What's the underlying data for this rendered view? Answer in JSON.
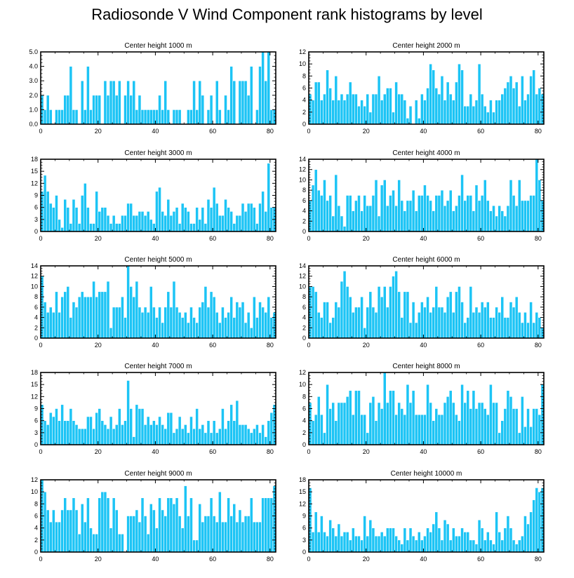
{
  "figure_title": "Radiosonde V Wind Component rank histograms by level",
  "colors": {
    "bar_fill": "#1cc4f5",
    "bar_stroke": "#ffffff",
    "axis": "#000000"
  },
  "chart_data": [
    {
      "type": "bar",
      "title": "Center height 1000 m",
      "xlabel": "",
      "ylabel": "",
      "xlim": [
        0,
        82
      ],
      "ylim": [
        0,
        5
      ],
      "yticks": [
        0,
        1,
        2,
        3,
        4,
        5
      ],
      "ytick_labels": [
        "0.0",
        "1.0",
        "2.0",
        "3.0",
        "4.0",
        "5.0"
      ],
      "xticks": [
        0,
        20,
        40,
        60,
        80
      ],
      "x_start": 0,
      "values": [
        2,
        1,
        2,
        1,
        0,
        1,
        1,
        1,
        2,
        2,
        4,
        1,
        1,
        0,
        3,
        1,
        4,
        1,
        2,
        2,
        2,
        0,
        3,
        2,
        3,
        3,
        2,
        3,
        0,
        2,
        3,
        2,
        3,
        1,
        2,
        1,
        1,
        1,
        1,
        1,
        1,
        2,
        1,
        3,
        1,
        0,
        1,
        1,
        1,
        0,
        0,
        1,
        1,
        3,
        1,
        3,
        2,
        0,
        1,
        2,
        0,
        3,
        1,
        0,
        2,
        1,
        4,
        3,
        0,
        3,
        3,
        3,
        2,
        4,
        0,
        1,
        4,
        5,
        3,
        5,
        1,
        1
      ]
    },
    {
      "type": "bar",
      "title": "Center height 2000 m",
      "xlabel": "",
      "ylabel": "",
      "xlim": [
        0,
        82
      ],
      "ylim": [
        0,
        12
      ],
      "yticks": [
        0,
        2,
        4,
        6,
        8,
        10,
        12
      ],
      "ytick_labels": [
        "0",
        "2",
        "4",
        "6",
        "8",
        "10",
        "12"
      ],
      "xticks": [
        0,
        20,
        40,
        60,
        80
      ],
      "x_start": 0,
      "values": [
        5,
        4,
        7,
        7,
        4,
        5,
        9,
        6,
        4,
        8,
        4,
        5,
        4,
        5,
        7,
        5,
        5,
        3,
        4,
        3,
        5,
        2,
        5,
        5,
        8,
        4,
        5,
        6,
        6,
        2,
        7,
        5,
        5,
        4,
        1,
        3,
        0,
        4,
        1,
        5,
        4,
        6,
        10,
        9,
        6,
        5,
        8,
        4,
        7,
        5,
        4,
        7,
        10,
        9,
        3,
        3,
        5,
        3,
        4,
        10,
        5,
        3,
        2,
        4,
        2,
        4,
        4,
        5,
        6,
        7,
        8,
        6,
        7,
        3,
        8,
        4,
        5,
        8,
        9,
        5,
        6,
        5
      ]
    },
    {
      "type": "bar",
      "title": "Center height 3000 m",
      "xlabel": "",
      "ylabel": "",
      "xlim": [
        0,
        82
      ],
      "ylim": [
        0,
        18
      ],
      "yticks": [
        0,
        3,
        6,
        9,
        12,
        15,
        18
      ],
      "ytick_labels": [
        "0",
        "3",
        "6",
        "9",
        "12",
        "15",
        "18"
      ],
      "xticks": [
        0,
        20,
        40,
        60,
        80
      ],
      "x_start": 0,
      "values": [
        10,
        14,
        10,
        7,
        6,
        9,
        3,
        1,
        8,
        6,
        2,
        8,
        6,
        2,
        9,
        12,
        6,
        2,
        2,
        10,
        5,
        6,
        6,
        4,
        2,
        4,
        2,
        2,
        4,
        4,
        7,
        7,
        4,
        4,
        5,
        5,
        4,
        5,
        3,
        2,
        10,
        11,
        5,
        4,
        8,
        4,
        5,
        6,
        2,
        7,
        6,
        5,
        2,
        2,
        6,
        3,
        6,
        2,
        8,
        6,
        11,
        7,
        4,
        4,
        8,
        6,
        5,
        2,
        4,
        4,
        7,
        5,
        7,
        7,
        6,
        2,
        7,
        10,
        5,
        17,
        6,
        6
      ]
    },
    {
      "type": "bar",
      "title": "Center height 4000 m",
      "xlabel": "",
      "ylabel": "",
      "xlim": [
        0,
        82
      ],
      "ylim": [
        0,
        14
      ],
      "yticks": [
        0,
        2,
        4,
        6,
        8,
        10,
        12,
        14
      ],
      "ytick_labels": [
        "0",
        "2",
        "4",
        "6",
        "8",
        "10",
        "12",
        "14"
      ],
      "xticks": [
        0,
        20,
        40,
        60,
        80
      ],
      "x_start": 0,
      "values": [
        6,
        9,
        12,
        8,
        7,
        10,
        6,
        7,
        3,
        11,
        5,
        3,
        1,
        7,
        7,
        4,
        6,
        7,
        4,
        7,
        5,
        5,
        7,
        10,
        3,
        9,
        10,
        5,
        7,
        8,
        5,
        10,
        6,
        4,
        6,
        6,
        8,
        4,
        7,
        7,
        9,
        7,
        6,
        4,
        7,
        7,
        8,
        5,
        6,
        8,
        4,
        5,
        7,
        11,
        6,
        7,
        7,
        4,
        9,
        6,
        7,
        10,
        6,
        4,
        5,
        3,
        5,
        4,
        3,
        5,
        10,
        7,
        5,
        10,
        6,
        6,
        6,
        7,
        7,
        14,
        10,
        6
      ]
    },
    {
      "type": "bar",
      "title": "Center height 5000 m",
      "xlabel": "",
      "ylabel": "",
      "xlim": [
        0,
        82
      ],
      "ylim": [
        0,
        14
      ],
      "yticks": [
        0,
        2,
        4,
        6,
        8,
        10,
        12,
        14
      ],
      "ytick_labels": [
        "0",
        "2",
        "4",
        "6",
        "8",
        "10",
        "12",
        "14"
      ],
      "xticks": [
        0,
        20,
        40,
        60,
        80
      ],
      "x_start": 0,
      "values": [
        12,
        7,
        5,
        6,
        5,
        9,
        5,
        8,
        9,
        10,
        4,
        7,
        6,
        8,
        9,
        8,
        8,
        8,
        11,
        8,
        9,
        9,
        9,
        11,
        2,
        6,
        6,
        6,
        8,
        4,
        14,
        10,
        8,
        11,
        6,
        5,
        6,
        5,
        10,
        6,
        4,
        6,
        3,
        6,
        9,
        6,
        11,
        6,
        5,
        4,
        5,
        3,
        6,
        4,
        3,
        6,
        7,
        10,
        6,
        9,
        8,
        5,
        3,
        6,
        4,
        5,
        8,
        4,
        7,
        6,
        7,
        3,
        5,
        2,
        8,
        4,
        7,
        6,
        5,
        8,
        4,
        5
      ]
    },
    {
      "type": "bar",
      "title": "Center height 6000 m",
      "xlabel": "",
      "ylabel": "",
      "xlim": [
        0,
        82
      ],
      "ylim": [
        0,
        14
      ],
      "yticks": [
        0,
        2,
        4,
        6,
        8,
        10,
        12,
        14
      ],
      "ytick_labels": [
        "0",
        "2",
        "4",
        "6",
        "8",
        "10",
        "12",
        "14"
      ],
      "xticks": [
        0,
        20,
        40,
        60,
        80
      ],
      "x_start": 0,
      "values": [
        10,
        10,
        9,
        5,
        4,
        7,
        7,
        3,
        4,
        7,
        6,
        11,
        13,
        10,
        8,
        5,
        6,
        6,
        8,
        2,
        6,
        9,
        6,
        5,
        10,
        8,
        10,
        6,
        10,
        12,
        13,
        9,
        4,
        9,
        9,
        3,
        7,
        3,
        5,
        7,
        6,
        8,
        5,
        6,
        10,
        6,
        6,
        5,
        8,
        9,
        5,
        9,
        10,
        7,
        3,
        4,
        10,
        5,
        6,
        5,
        7,
        6,
        7,
        4,
        4,
        6,
        5,
        8,
        4,
        4,
        7,
        6,
        8,
        5,
        3,
        5,
        3,
        7,
        3,
        5,
        4,
        2
      ]
    },
    {
      "type": "bar",
      "title": "Center height 7000 m",
      "xlabel": "",
      "ylabel": "",
      "xlim": [
        0,
        82
      ],
      "ylim": [
        0,
        18
      ],
      "yticks": [
        0,
        3,
        6,
        9,
        12,
        15,
        18
      ],
      "ytick_labels": [
        "0",
        "3",
        "6",
        "9",
        "12",
        "15",
        "18"
      ],
      "xticks": [
        0,
        20,
        40,
        60,
        80
      ],
      "x_start": 0,
      "values": [
        10,
        6,
        5,
        8,
        7,
        9,
        6,
        10,
        6,
        6,
        9,
        6,
        5,
        4,
        4,
        4,
        7,
        7,
        4,
        8,
        9,
        6,
        5,
        4,
        7,
        4,
        5,
        9,
        5,
        6,
        16,
        9,
        2,
        10,
        9,
        9,
        5,
        7,
        5,
        6,
        5,
        7,
        5,
        4,
        8,
        8,
        3,
        4,
        7,
        4,
        5,
        3,
        7,
        4,
        9,
        4,
        5,
        3,
        6,
        3,
        6,
        3,
        4,
        9,
        4,
        6,
        10,
        6,
        11,
        5,
        5,
        5,
        4,
        3,
        4,
        5,
        3,
        5,
        2,
        6,
        8,
        10
      ]
    },
    {
      "type": "bar",
      "title": "Center height 8000 m",
      "xlabel": "",
      "ylabel": "",
      "xlim": [
        0,
        82
      ],
      "ylim": [
        0,
        12
      ],
      "yticks": [
        0,
        2,
        4,
        6,
        8,
        10,
        12
      ],
      "ytick_labels": [
        "0",
        "2",
        "4",
        "6",
        "8",
        "10",
        "12"
      ],
      "xticks": [
        0,
        20,
        40,
        60,
        80
      ],
      "x_start": 0,
      "values": [
        7,
        4,
        5,
        8,
        5,
        2,
        10,
        6,
        7,
        4,
        7,
        7,
        7,
        8,
        9,
        5,
        9,
        9,
        5,
        5,
        2,
        7,
        8,
        4,
        7,
        6,
        12,
        7,
        9,
        9,
        5,
        7,
        6,
        5,
        10,
        7,
        9,
        5,
        5,
        5,
        5,
        10,
        7,
        4,
        6,
        5,
        5,
        7,
        8,
        9,
        7,
        5,
        4,
        10,
        7,
        9,
        6,
        9,
        6,
        7,
        7,
        6,
        5,
        10,
        7,
        7,
        2,
        4,
        6,
        9,
        8,
        6,
        6,
        2,
        8,
        3,
        6,
        3,
        6,
        6,
        5,
        10
      ]
    },
    {
      "type": "bar",
      "title": "Center height 9000 m",
      "xlabel": "",
      "ylabel": "",
      "xlim": [
        0,
        82
      ],
      "ylim": [
        0,
        12
      ],
      "yticks": [
        0,
        2,
        4,
        6,
        8,
        10,
        12
      ],
      "ytick_labels": [
        "0",
        "2",
        "4",
        "6",
        "8",
        "10",
        "12"
      ],
      "xticks": [
        0,
        20,
        40,
        60,
        80
      ],
      "x_start": 0,
      "values": [
        12,
        10,
        7,
        5,
        7,
        5,
        5,
        7,
        9,
        7,
        7,
        9,
        7,
        3,
        8,
        5,
        9,
        4,
        3,
        3,
        9,
        10,
        10,
        9,
        4,
        9,
        7,
        3,
        3,
        0,
        6,
        6,
        6,
        7,
        5,
        9,
        6,
        3,
        8,
        7,
        4,
        9,
        7,
        6,
        9,
        9,
        8,
        9,
        6,
        4,
        11,
        6,
        9,
        2,
        2,
        8,
        5,
        6,
        6,
        9,
        6,
        5,
        10,
        5,
        5,
        9,
        6,
        8,
        5,
        7,
        5,
        6,
        6,
        9,
        5,
        5,
        5,
        9,
        9,
        9,
        9,
        11
      ]
    },
    {
      "type": "bar",
      "title": "Center height 10000 m",
      "xlabel": "",
      "ylabel": "",
      "xlim": [
        0,
        82
      ],
      "ylim": [
        0,
        18
      ],
      "yticks": [
        0,
        3,
        6,
        9,
        12,
        15,
        18
      ],
      "ytick_labels": [
        "0",
        "3",
        "6",
        "9",
        "12",
        "15",
        "18"
      ],
      "xticks": [
        0,
        20,
        40,
        60,
        80
      ],
      "x_start": 0,
      "values": [
        16,
        5,
        10,
        5,
        9,
        5,
        4,
        8,
        6,
        4,
        7,
        4,
        5,
        5,
        3,
        6,
        4,
        4,
        3,
        9,
        4,
        8,
        6,
        4,
        4,
        5,
        4,
        6,
        6,
        6,
        4,
        3,
        2,
        6,
        3,
        6,
        4,
        3,
        5,
        3,
        4,
        6,
        5,
        7,
        10,
        6,
        3,
        8,
        7,
        3,
        6,
        4,
        4,
        6,
        5,
        5,
        3,
        3,
        2,
        8,
        6,
        3,
        5,
        3,
        2,
        10,
        5,
        3,
        6,
        9,
        6,
        3,
        2,
        3,
        4,
        9,
        7,
        10,
        13,
        16,
        15,
        16
      ]
    }
  ]
}
